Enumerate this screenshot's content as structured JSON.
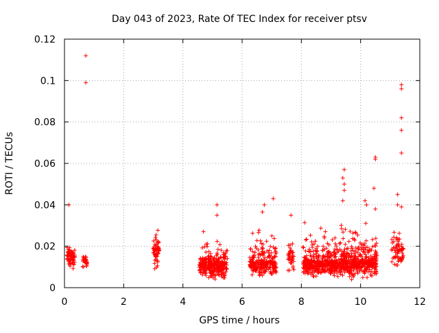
{
  "chart_data": {
    "type": "scatter",
    "title": "Day 043 of 2023, Rate Of TEC Index for receiver ptsv",
    "xlabel": "GPS time / hours",
    "ylabel": "ROTI / TECUs",
    "xlim": [
      0,
      12
    ],
    "ylim": [
      0,
      0.12
    ],
    "x_ticks": [
      "0",
      "2",
      "4",
      "6",
      "8",
      "10",
      "12"
    ],
    "y_ticks": [
      "0",
      "0.02",
      "0.04",
      "0.06",
      "0.08",
      "0.1",
      "0.12"
    ],
    "grid": true,
    "marker": "+",
    "color": "#ff0000",
    "outliers": [
      {
        "x": 0.15,
        "y": 0.04
      },
      {
        "x": 0.72,
        "y": 0.112
      },
      {
        "x": 0.72,
        "y": 0.099
      },
      {
        "x": 5.15,
        "y": 0.04
      },
      {
        "x": 5.15,
        "y": 0.035
      },
      {
        "x": 6.75,
        "y": 0.04
      },
      {
        "x": 7.05,
        "y": 0.043
      },
      {
        "x": 7.65,
        "y": 0.035
      },
      {
        "x": 9.45,
        "y": 0.057
      },
      {
        "x": 9.4,
        "y": 0.053
      },
      {
        "x": 9.45,
        "y": 0.05
      },
      {
        "x": 9.45,
        "y": 0.047
      },
      {
        "x": 9.4,
        "y": 0.042
      },
      {
        "x": 10.15,
        "y": 0.042
      },
      {
        "x": 10.2,
        "y": 0.04
      },
      {
        "x": 10.5,
        "y": 0.063
      },
      {
        "x": 10.5,
        "y": 0.062
      },
      {
        "x": 10.45,
        "y": 0.048
      },
      {
        "x": 10.5,
        "y": 0.038
      },
      {
        "x": 11.25,
        "y": 0.045
      },
      {
        "x": 11.38,
        "y": 0.098
      },
      {
        "x": 11.38,
        "y": 0.096
      },
      {
        "x": 11.38,
        "y": 0.082
      },
      {
        "x": 11.38,
        "y": 0.076
      },
      {
        "x": 11.38,
        "y": 0.065
      },
      {
        "x": 11.38,
        "y": 0.039
      },
      {
        "x": 11.25,
        "y": 0.04
      }
    ],
    "clusters": [
      {
        "x_start": 0.08,
        "x_end": 0.35,
        "y_min": 0.008,
        "y_max": 0.026,
        "center": 0.015,
        "n": 70
      },
      {
        "x_start": 0.62,
        "x_end": 0.78,
        "y_min": 0.008,
        "y_max": 0.018,
        "center": 0.013,
        "n": 25
      },
      {
        "x_start": 3.0,
        "x_end": 3.2,
        "y_min": 0.006,
        "y_max": 0.034,
        "center": 0.018,
        "n": 60
      },
      {
        "x_start": 4.55,
        "x_end": 5.5,
        "y_min": 0.003,
        "y_max": 0.028,
        "center": 0.011,
        "n": 320
      },
      {
        "x_start": 6.25,
        "x_end": 7.15,
        "y_min": 0.004,
        "y_max": 0.038,
        "center": 0.012,
        "n": 230
      },
      {
        "x_start": 7.55,
        "x_end": 7.75,
        "y_min": 0.006,
        "y_max": 0.03,
        "center": 0.015,
        "n": 40
      },
      {
        "x_start": 8.05,
        "x_end": 9.1,
        "y_min": 0.004,
        "y_max": 0.035,
        "center": 0.012,
        "n": 320
      },
      {
        "x_start": 9.1,
        "x_end": 10.55,
        "y_min": 0.003,
        "y_max": 0.035,
        "center": 0.012,
        "n": 480
      },
      {
        "x_start": 11.05,
        "x_end": 11.45,
        "y_min": 0.008,
        "y_max": 0.032,
        "center": 0.018,
        "n": 70
      }
    ]
  }
}
